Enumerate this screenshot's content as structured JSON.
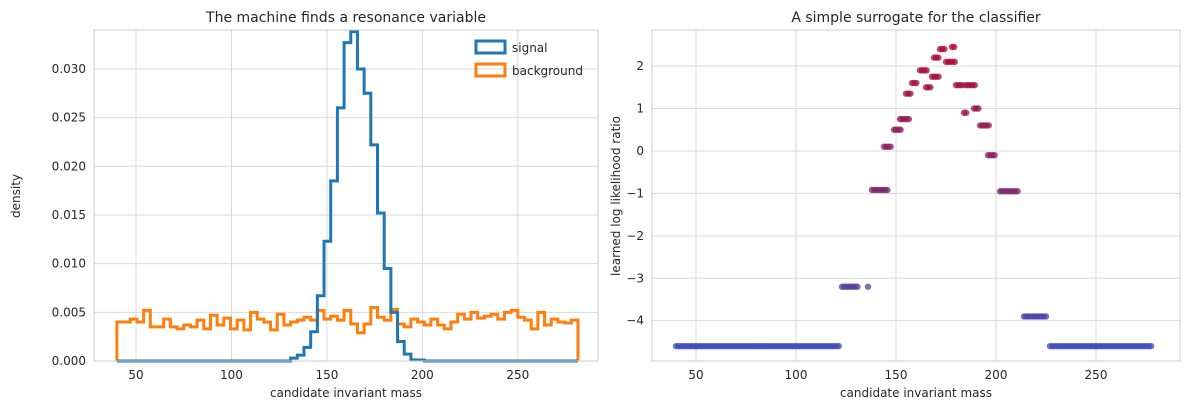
{
  "chart_data": [
    {
      "type": "histogram",
      "title": "The machine finds a resonance variable",
      "xlabel": "candidate invariant mass",
      "ylabel": "density",
      "xlim": [
        28,
        292
      ],
      "ylim": [
        0,
        0.034
      ],
      "xticks": [
        50,
        100,
        150,
        200,
        250
      ],
      "yticks": [
        0.0,
        0.005,
        0.01,
        0.015,
        0.02,
        0.025,
        0.03
      ],
      "ytick_labels": [
        "0.000",
        "0.005",
        "0.010",
        "0.015",
        "0.020",
        "0.025",
        "0.030"
      ],
      "grid": true,
      "legend_position": "top-right",
      "bin_edges_start": 40,
      "bin_width": 3.5,
      "series": [
        {
          "name": "signal",
          "color": "#1f77b4",
          "values": [
            0,
            0,
            0,
            0,
            0,
            0,
            0,
            0,
            0,
            0,
            0,
            0,
            0,
            0,
            0,
            0,
            0,
            0,
            0,
            0,
            0,
            0,
            0,
            0,
            0,
            0,
            0.0003,
            0.0006,
            0.0014,
            0.003,
            0.0067,
            0.0123,
            0.0185,
            0.026,
            0.0327,
            0.0353,
            0.03,
            0.0275,
            0.0222,
            0.0152,
            0.0095,
            0.005,
            0.002,
            0.0007,
            0.0001,
            0.0001,
            0,
            0,
            0,
            0,
            0,
            0,
            0,
            0,
            0,
            0,
            0,
            0,
            0,
            0,
            0,
            0,
            0,
            0,
            0,
            0,
            0,
            0,
            0
          ]
        },
        {
          "name": "background",
          "color": "#ff7f0e",
          "values": [
            0.004,
            0.004,
            0.0043,
            0.004,
            0.0052,
            0.0035,
            0.0035,
            0.0043,
            0.0035,
            0.0033,
            0.0037,
            0.0035,
            0.0042,
            0.0033,
            0.0047,
            0.0037,
            0.0044,
            0.0033,
            0.0042,
            0.0032,
            0.005,
            0.0043,
            0.004,
            0.0032,
            0.0048,
            0.0037,
            0.004,
            0.0042,
            0.0045,
            0.0042,
            0.0052,
            0.0043,
            0.0046,
            0.0042,
            0.0052,
            0.0038,
            0.0029,
            0.0038,
            0.0055,
            0.0045,
            0.0042,
            0.0053,
            0.0038,
            0.0035,
            0.0043,
            0.004,
            0.0037,
            0.0043,
            0.0037,
            0.0033,
            0.004,
            0.0048,
            0.0043,
            0.005,
            0.0044,
            0.0046,
            0.0048,
            0.0043,
            0.005,
            0.0052,
            0.0045,
            0.0042,
            0.0033,
            0.005,
            0.0037,
            0.0043,
            0.004,
            0.0039,
            0.0042
          ]
        }
      ]
    },
    {
      "type": "scatter",
      "title": "A simple surrogate for the classifier",
      "xlabel": "candidate invariant mass",
      "ylabel": "learned log likelihood ratio",
      "xlim": [
        28,
        292
      ],
      "ylim": [
        -4.95,
        2.85
      ],
      "xticks": [
        50,
        100,
        150,
        200,
        250
      ],
      "yticks": [
        -4,
        -3,
        -2,
        -1,
        0,
        1,
        2
      ],
      "grid": true,
      "color_low": "#3b4cc0",
      "color_high": "#b40426",
      "steps": [
        [
          40,
          122,
          -4.6
        ],
        [
          123,
          131,
          -3.2
        ],
        [
          136,
          137,
          -3.2
        ],
        [
          138,
          146,
          -0.92
        ],
        [
          144,
          148,
          0.1
        ],
        [
          149,
          153,
          0.5
        ],
        [
          152,
          157,
          0.75
        ],
        [
          155,
          158,
          1.35
        ],
        [
          158,
          161,
          1.6
        ],
        [
          162,
          166,
          1.9
        ],
        [
          165,
          168,
          1.5
        ],
        [
          168,
          172,
          1.75
        ],
        [
          169,
          172,
          2.2
        ],
        [
          172,
          175,
          2.4
        ],
        [
          175,
          180,
          2.1
        ],
        [
          178,
          180,
          2.45
        ],
        [
          180,
          184,
          1.55
        ],
        [
          184,
          186,
          0.9
        ],
        [
          185,
          190,
          1.55
        ],
        [
          189,
          192,
          1.0
        ],
        [
          192,
          197,
          0.6
        ],
        [
          196,
          200,
          -0.1
        ],
        [
          202,
          211,
          -0.95
        ],
        [
          214,
          226,
          -3.9
        ],
        [
          227,
          278,
          -4.6
        ]
      ]
    }
  ]
}
